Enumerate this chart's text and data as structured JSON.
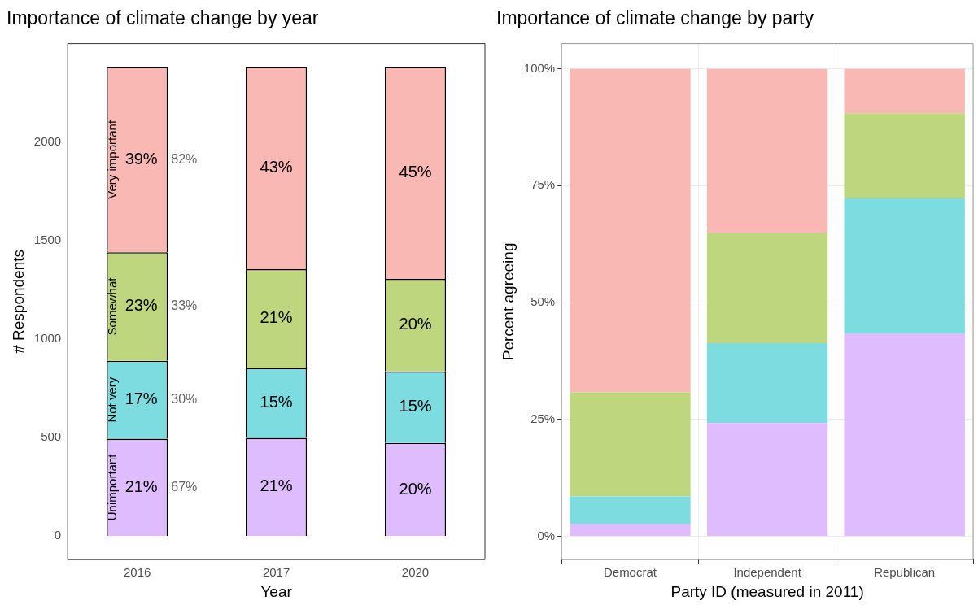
{
  "chart_data": [
    {
      "type": "bar",
      "title": "Importance of climate change by year",
      "xlabel": "Year",
      "ylabel": "# Respondents",
      "categories": [
        "2016",
        "2017",
        "2020"
      ],
      "stacked": true,
      "ylim": [
        -119,
        2498
      ],
      "yticks": [
        0,
        500,
        1000,
        1500,
        2000
      ],
      "series": [
        {
          "name": "Unimportant",
          "color": "#dfbcfe",
          "values": [
            494,
            498,
            473
          ]
        },
        {
          "name": "Not very",
          "color": "#7cdce0",
          "values": [
            395,
            354,
            362
          ]
        },
        {
          "name": "Somewhat",
          "color": "#bed67e",
          "values": [
            551,
            502,
            470
          ]
        },
        {
          "name": "Very important",
          "color": "#f9b8b3",
          "values": [
            939,
            1025,
            1074
          ]
        }
      ],
      "annotations": [
        "21%",
        "21%",
        "20%",
        "17%",
        "15%",
        "15%",
        "23%",
        "21%",
        "20%",
        "39%",
        "43%",
        "45%",
        "82%",
        "33%",
        "30%",
        "67%"
      ]
    },
    {
      "type": "bar",
      "title": "Importance of climate change by party",
      "xlabel": "Party ID (measured in 2011)",
      "ylabel": "Percent agreeing",
      "categories": [
        "Democrat",
        "Independent",
        "Republican"
      ],
      "stacked": true,
      "grid": true,
      "ylim": [
        -5,
        105.4
      ],
      "yticks": [
        {
          "value": 0,
          "label": "0%"
        },
        {
          "value": 25,
          "label": "25%"
        },
        {
          "value": 50,
          "label": "50%"
        },
        {
          "value": 75,
          "label": "75%"
        },
        {
          "value": 100,
          "label": "100%"
        }
      ],
      "series": [
        {
          "color": "#dfbcfe",
          "values": [
            2.6,
            24.2,
            43.4
          ]
        },
        {
          "color": "#7cdce0",
          "values": [
            5.9,
            17.1,
            28.9
          ]
        },
        {
          "color": "#bed67e",
          "values": [
            22.3,
            23.6,
            18.2
          ]
        },
        {
          "color": "#f9b8b3",
          "values": [
            69.2,
            35.1,
            9.5
          ]
        }
      ]
    }
  ]
}
